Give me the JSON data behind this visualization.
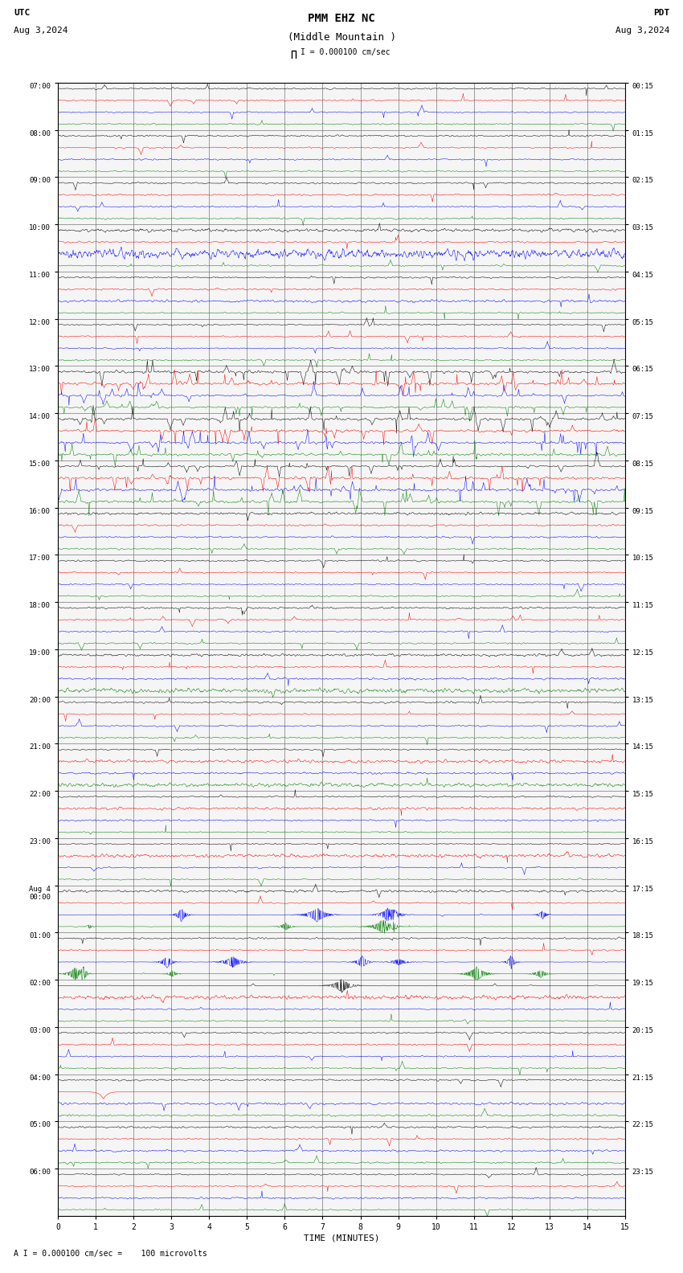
{
  "title_line1": "PMM EHZ NC",
  "title_line2": "(Middle Mountain )",
  "scale_label": "I = 0.000100 cm/sec",
  "footer_label": "A I = 0.000100 cm/sec =    100 microvolts",
  "utc_label": "UTC",
  "pdt_label": "PDT",
  "date_left": "Aug 3,2024",
  "date_right": "Aug 3,2024",
  "xlabel": "TIME (MINUTES)",
  "bg_color": "#ffffff",
  "grid_color": "#888888",
  "time_minutes": 15,
  "n_hour_rows": 24,
  "traces_per_hour": 4,
  "left_hour_labels": [
    "07:00",
    "08:00",
    "09:00",
    "10:00",
    "11:00",
    "12:00",
    "13:00",
    "14:00",
    "15:00",
    "16:00",
    "17:00",
    "18:00",
    "19:00",
    "20:00",
    "21:00",
    "22:00",
    "23:00",
    "Aug 4\n00:00",
    "01:00",
    "02:00",
    "03:00",
    "04:00",
    "05:00",
    "06:00"
  ],
  "right_hour_labels": [
    "00:15",
    "01:15",
    "02:15",
    "03:15",
    "04:15",
    "05:15",
    "06:15",
    "07:15",
    "08:15",
    "09:15",
    "10:15",
    "11:15",
    "12:15",
    "13:15",
    "14:15",
    "15:15",
    "16:15",
    "17:15",
    "18:15",
    "19:15",
    "20:15",
    "21:15",
    "22:15",
    "23:15"
  ],
  "colors": [
    "black",
    "red",
    "blue",
    "green"
  ],
  "figsize": [
    8.5,
    15.84
  ],
  "dpi": 100,
  "noise_scales": {
    "quiet": 0.06,
    "medium": 0.15,
    "active": 0.55,
    "very_active": 0.9
  },
  "active_hours": [
    6,
    7,
    8
  ],
  "medium_hours": [
    5,
    9,
    10
  ],
  "red_persistent_hours": [
    8,
    9,
    10,
    11,
    12,
    13,
    14,
    15
  ],
  "aug4_event_hour": 17,
  "aug4_red_hour": 21
}
